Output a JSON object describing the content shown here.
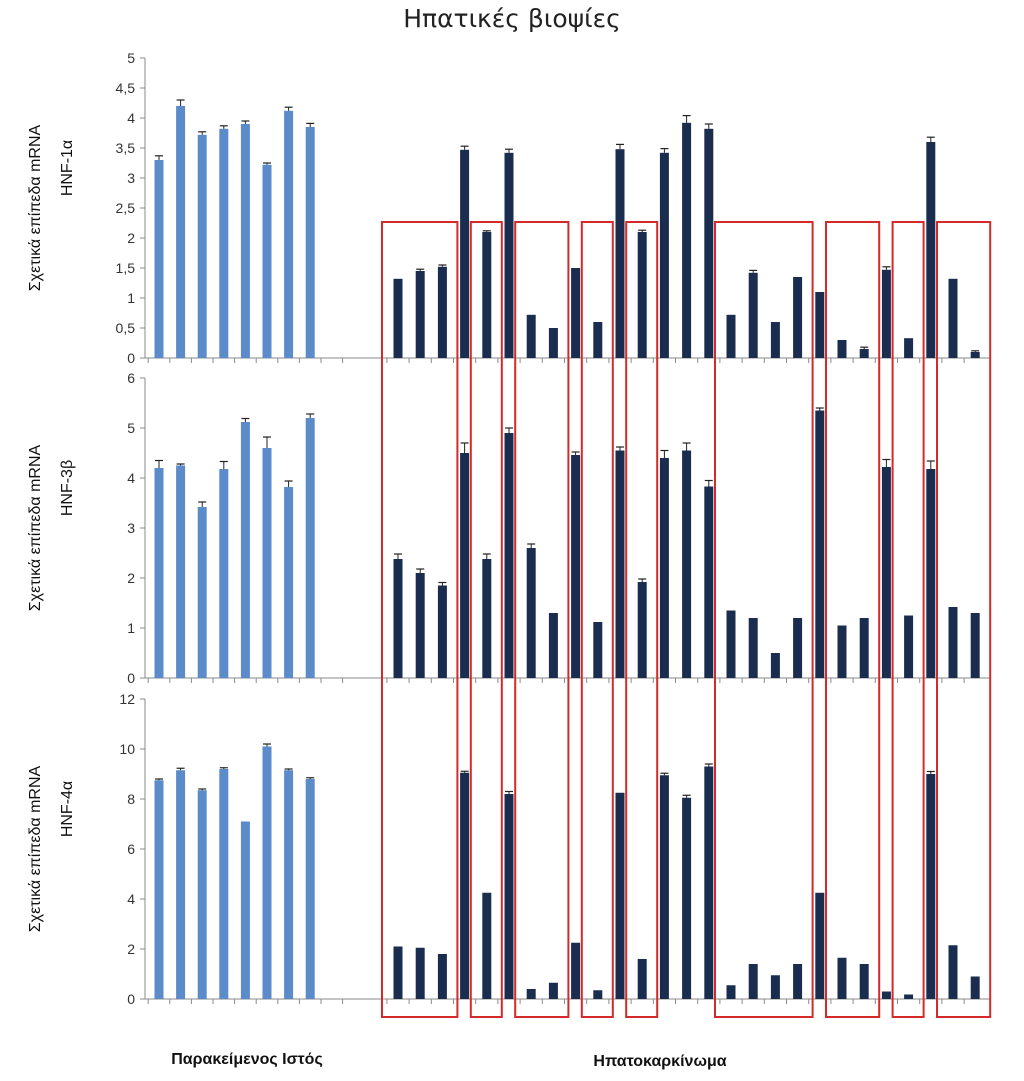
{
  "title": "Ηπατικές βιοψίες",
  "group_labels": {
    "adjacent": "Παρακείμενος Ιστός",
    "hcc": "Ηπατοκαρκίνωμα"
  },
  "colors": {
    "adjacent": "#5b8bc9",
    "hcc": "#1b2d4f",
    "box": "#d42a2a",
    "axis": "#8a8a8a"
  },
  "chart_data": [
    {
      "type": "bar",
      "ylabel_line1": "Σχετικά επίπεδα mRNA",
      "ylabel_line2": "HNF-1α",
      "ylim": [
        0,
        5
      ],
      "yticks": [
        "0",
        "0,5",
        "1",
        "1,5",
        "2",
        "2,5",
        "3",
        "3,5",
        "4",
        "4,5",
        "5"
      ],
      "ytick_values": [
        0,
        0.5,
        1,
        1.5,
        2,
        2.5,
        3,
        3.5,
        4,
        4.5,
        5
      ],
      "adjacent": [
        3.3,
        4.2,
        3.72,
        3.82,
        3.9,
        3.22,
        4.12,
        3.85
      ],
      "adjacent_err": [
        0.07,
        0.1,
        0.05,
        0.05,
        0.05,
        0.03,
        0.06,
        0.06
      ],
      "hcc": [
        1.32,
        1.45,
        1.52,
        3.47,
        2.1,
        3.42,
        0.72,
        0.5,
        1.5,
        0.6,
        3.48,
        2.1,
        3.42,
        3.92,
        3.82,
        0.72,
        1.42,
        0.6,
        1.35,
        1.1,
        0.3,
        0.15,
        1.47,
        0.33,
        3.6,
        1.32,
        0.1
      ],
      "hcc_err": [
        0,
        0.03,
        0.03,
        0.06,
        0.02,
        0.06,
        0,
        0,
        0,
        0,
        0.08,
        0.03,
        0.07,
        0.12,
        0.08,
        0,
        0.04,
        0,
        0,
        0,
        0,
        0.03,
        0.05,
        0,
        0.08,
        0,
        0.02
      ]
    },
    {
      "type": "bar",
      "ylabel_line1": "Σχετικά επίπεδα mRNA",
      "ylabel_line2": "HNF-3β",
      "ylim": [
        0,
        6
      ],
      "yticks": [
        "0",
        "1",
        "2",
        "3",
        "4",
        "5",
        "6"
      ],
      "ytick_values": [
        0,
        1,
        2,
        3,
        4,
        5,
        6
      ],
      "adjacent": [
        4.2,
        4.25,
        3.42,
        4.18,
        5.12,
        4.6,
        3.82,
        5.2
      ],
      "adjacent_err": [
        0.15,
        0.03,
        0.1,
        0.15,
        0.07,
        0.22,
        0.12,
        0.08
      ],
      "hcc": [
        2.38,
        2.1,
        1.85,
        4.5,
        2.38,
        4.9,
        2.6,
        1.3,
        4.46,
        1.12,
        4.55,
        1.92,
        4.4,
        4.55,
        3.83,
        1.35,
        1.2,
        0.5,
        1.2,
        5.35,
        1.05,
        1.2,
        4.22,
        1.25,
        4.18,
        1.42,
        1.3
      ],
      "hcc_err": [
        0.1,
        0.08,
        0.06,
        0.2,
        0.1,
        0.1,
        0.08,
        0,
        0.06,
        0,
        0.07,
        0.06,
        0.15,
        0.15,
        0.12,
        0,
        0,
        0,
        0,
        0.05,
        0,
        0,
        0.15,
        0,
        0.16,
        0,
        0
      ]
    },
    {
      "type": "bar",
      "ylabel_line1": "Σχετικά επίπεδα mRNA",
      "ylabel_line2": "HNF-4α",
      "ylim": [
        0,
        12
      ],
      "yticks": [
        "0",
        "2",
        "4",
        "6",
        "8",
        "10",
        "12"
      ],
      "ytick_values": [
        0,
        2,
        4,
        6,
        8,
        10,
        12
      ],
      "adjacent": [
        8.75,
        9.15,
        8.35,
        9.2,
        7.1,
        10.1,
        9.15,
        8.8
      ],
      "adjacent_err": [
        0.05,
        0.08,
        0.05,
        0.05,
        0,
        0.1,
        0.05,
        0.05
      ],
      "hcc": [
        2.1,
        2.05,
        1.8,
        9.05,
        4.25,
        8.2,
        0.4,
        0.65,
        2.25,
        0.35,
        8.25,
        1.6,
        8.95,
        8.05,
        9.3,
        0.55,
        1.4,
        0.95,
        1.4,
        4.25,
        1.65,
        1.4,
        0.3,
        0.18,
        9.0,
        2.15,
        0.9
      ],
      "hcc_err": [
        0,
        0,
        0,
        0.06,
        0,
        0.1,
        0,
        0,
        0,
        0,
        0,
        0,
        0.08,
        0.1,
        0.1,
        0,
        0,
        0,
        0,
        0,
        0,
        0,
        0,
        0,
        0.1,
        0,
        0
      ]
    }
  ],
  "boxes": [
    {
      "from": 0,
      "to": 2
    },
    {
      "from": 4,
      "to": 4
    },
    {
      "from": 6,
      "to": 7
    },
    {
      "from": 9,
      "to": 9
    },
    {
      "from": 11,
      "to": 11
    },
    {
      "from": 15,
      "to": 18
    },
    {
      "from": 20,
      "to": 21
    },
    {
      "from": 23,
      "to": 23
    },
    {
      "from": 25,
      "to": 26
    }
  ]
}
